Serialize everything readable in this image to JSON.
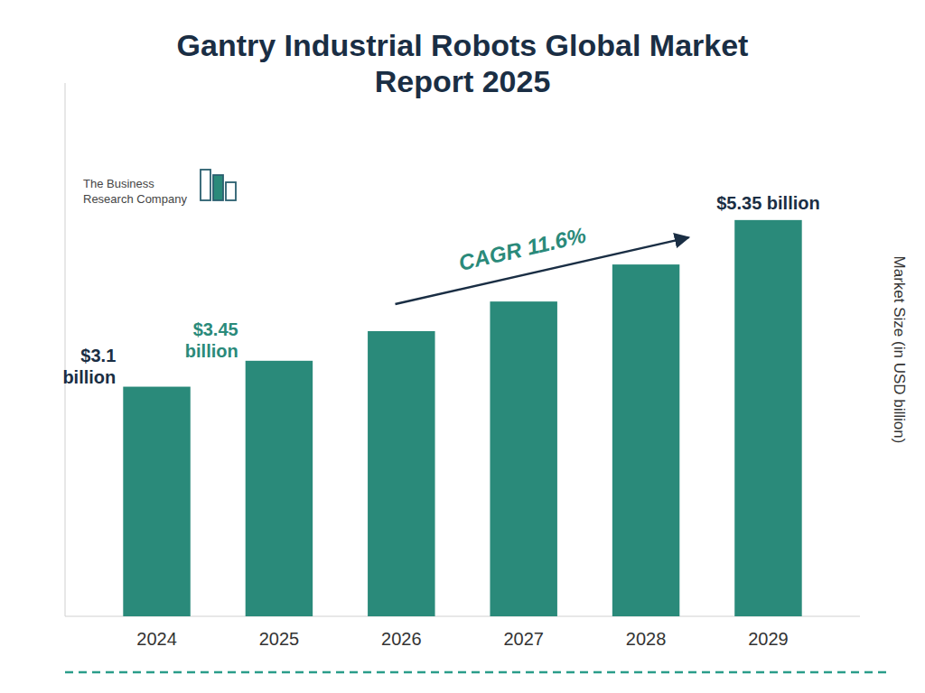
{
  "chart_data": {
    "type": "bar",
    "title": "Gantry Industrial Robots Global Market\nReport 2025",
    "categories": [
      "2024",
      "2025",
      "2026",
      "2027",
      "2028",
      "2029"
    ],
    "values": [
      3.1,
      3.45,
      3.85,
      4.25,
      4.75,
      5.35
    ],
    "value_labels": [
      "$3.1\nbillion",
      "$3.45\nbillion",
      null,
      null,
      null,
      "$5.35 billion"
    ],
    "color": "#2a8a7a",
    "y_label": "Market Size (in USD billion)",
    "ylim": [
      0,
      7.2
    ],
    "tick_labels": "x",
    "grid": false,
    "annotations": [
      "CAGR 11.6%",
      "The Business\nResearch Company"
    ]
  }
}
